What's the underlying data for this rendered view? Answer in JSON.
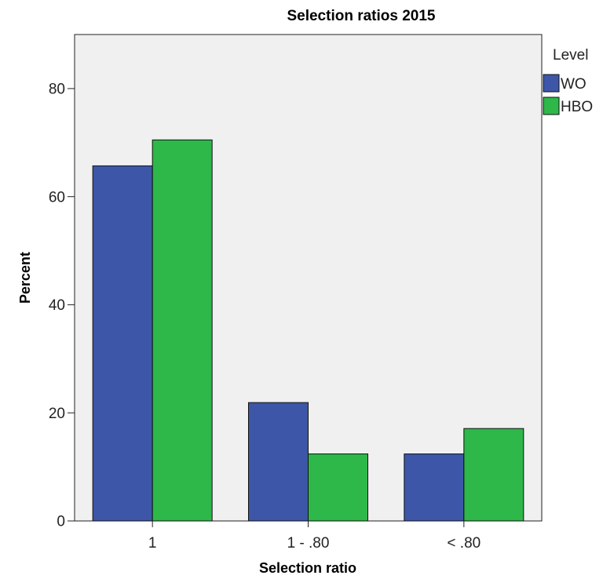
{
  "chart_data": {
    "type": "bar",
    "title": "Selection ratios 2015",
    "xlabel": "Selection ratio",
    "ylabel": "Percent",
    "categories": [
      "1",
      "1 - .80",
      "< .80"
    ],
    "series": [
      {
        "name": "WO",
        "color": "#3d56a8",
        "values": [
          65.7,
          21.9,
          12.4
        ]
      },
      {
        "name": "HBO",
        "color": "#2eb84a",
        "values": [
          70.5,
          12.4,
          17.1
        ]
      }
    ],
    "ylim": [
      0,
      90
    ],
    "yticks": [
      0,
      20,
      40,
      60,
      80
    ],
    "grid": false,
    "legend": {
      "title": "Level",
      "position": "right"
    },
    "plot_background": "#f0f0f0"
  }
}
